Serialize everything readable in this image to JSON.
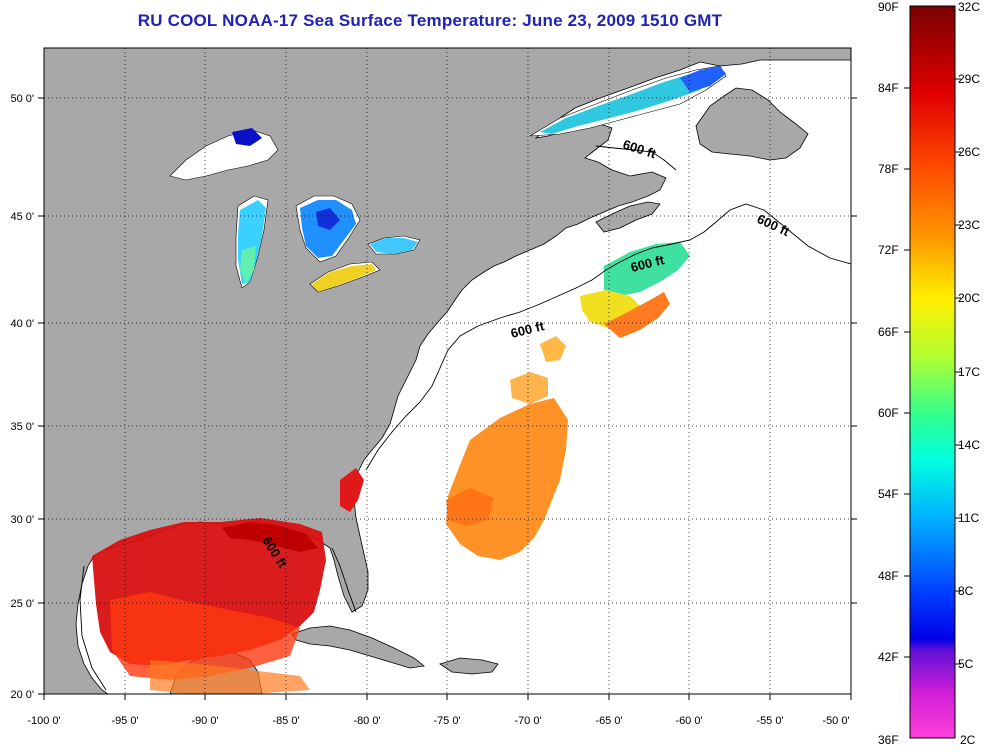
{
  "title": "RU COOL  NOAA-17  Sea Surface Temperature:  June 23, 2009 1510 GMT",
  "axes": {
    "x_ticks": [
      "-100 0'",
      "-95 0'",
      "-90 0'",
      "-85 0'",
      "-80 0'",
      "-75 0'",
      "-70 0'",
      "-65 0'",
      "-60 0'",
      "-55 0'",
      "-50 0'"
    ],
    "y_ticks": [
      "50 0'",
      "45 0'",
      "40 0'",
      "35 0'",
      "30 0'",
      "25 0'",
      "20 0'"
    ]
  },
  "contour_labels": [
    "600 ft",
    "600 ft",
    "600 ft",
    "600 ft",
    "600 ft"
  ],
  "colorbar": {
    "fahrenheit": [
      "90F",
      "84F",
      "78F",
      "72F",
      "66F",
      "60F",
      "54F",
      "48F",
      "42F",
      "36F"
    ],
    "celsius": [
      "32C",
      "29C",
      "26C",
      "23C",
      "20C",
      "17C",
      "14C",
      "11C",
      "8C",
      "5C",
      "2C"
    ]
  },
  "colors": {
    "title": "#1f22b4",
    "land": "#a8a8a8",
    "water": "#ffffff"
  }
}
